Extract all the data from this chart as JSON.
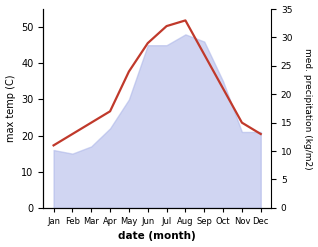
{
  "months": [
    "Jan",
    "Feb",
    "Mar",
    "Apr",
    "May",
    "Jun",
    "Jul",
    "Aug",
    "Sep",
    "Oct",
    "Nov",
    "Dec"
  ],
  "max_temp": [
    16,
    15,
    17,
    22,
    30,
    45,
    45,
    48,
    46,
    35,
    21,
    21
  ],
  "precipitation": [
    11,
    13,
    15,
    17,
    24,
    29,
    32,
    33,
    27,
    21,
    15,
    13
  ],
  "temp_color_fill": "#aab4e8",
  "temp_fill_alpha": 0.55,
  "precip_color": "#c0392b",
  "precip_linewidth": 1.6,
  "temp_ylim": [
    0,
    55
  ],
  "precip_ylim": [
    0,
    35
  ],
  "temp_yticks": [
    0,
    10,
    20,
    30,
    40,
    50
  ],
  "precip_yticks": [
    0,
    5,
    10,
    15,
    20,
    25,
    30,
    35
  ],
  "xlabel": "date (month)",
  "ylabel_left": "max temp (C)",
  "ylabel_right": "med. precipitation (kg/m2)",
  "background_color": "#ffffff"
}
